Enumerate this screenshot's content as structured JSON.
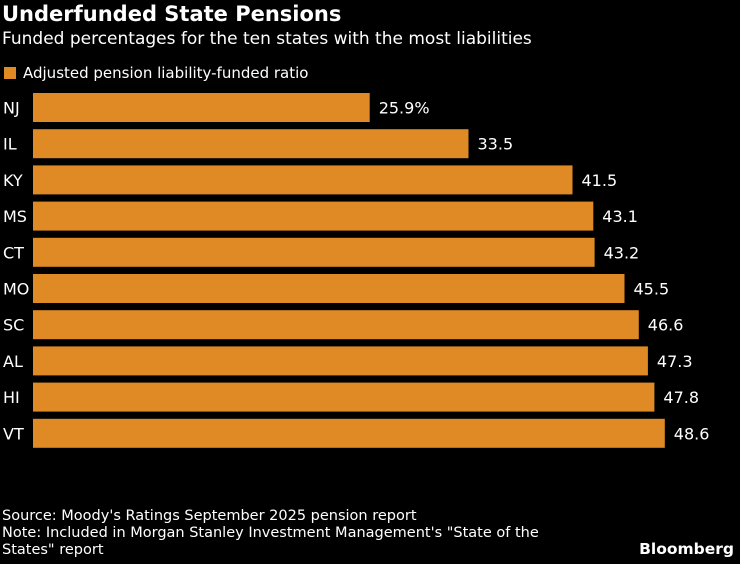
{
  "chart_data": {
    "type": "bar",
    "orientation": "horizontal",
    "title": "Underfunded State Pensions",
    "subtitle": "Funded percentages for the ten states with the most liabilities",
    "legend": [
      "Adjusted pension liability-funded ratio"
    ],
    "legend_placement": "top-left",
    "categories": [
      "NJ",
      "IL",
      "KY",
      "MS",
      "CT",
      "MO",
      "SC",
      "AL",
      "HI",
      "VT"
    ],
    "values": [
      25.9,
      33.5,
      41.5,
      43.1,
      43.2,
      45.5,
      46.6,
      47.3,
      47.8,
      48.6
    ],
    "value_labels": [
      "25.9%",
      "33.5",
      "41.5",
      "43.1",
      "43.2",
      "45.5",
      "46.6",
      "47.3",
      "47.8",
      "48.6"
    ],
    "grid": false,
    "bar_color": "#E08A26"
  },
  "footer": {
    "source": "Source: Moody's Ratings September 2025 pension report",
    "note_line1": "Note: Included in Morgan Stanley Investment Management's \"State of the",
    "note_line2": "States\" report"
  },
  "brand": "Bloomberg"
}
